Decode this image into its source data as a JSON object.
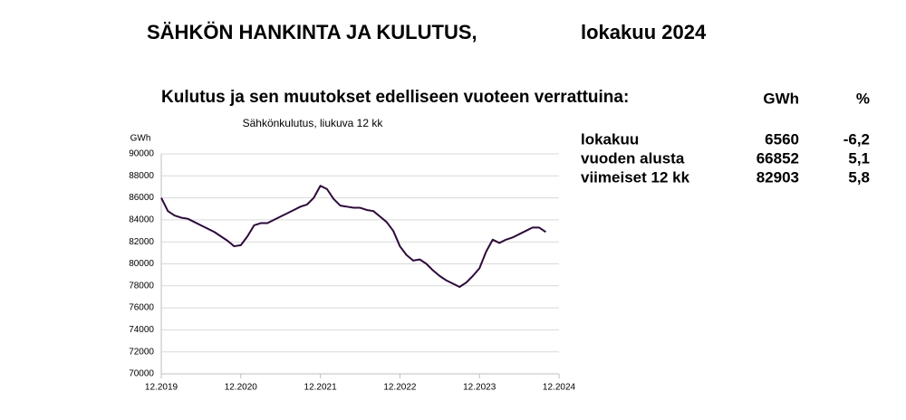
{
  "header": {
    "title": "SÄHKÖN HANKINTA JA KULUTUS,",
    "period": "lokakuu 2024"
  },
  "subheading": "Kulutus ja sen muutokset edelliseen vuoteen verrattuina:",
  "table": {
    "columns": [
      "GWh",
      "%"
    ],
    "rows": [
      [
        "lokakuu",
        "6560",
        "-6,2"
      ],
      [
        "vuoden alusta",
        "66852",
        "5,1"
      ],
      [
        "viimeiset 12 kk",
        "82903",
        "5,8"
      ]
    ]
  },
  "chart_data": {
    "type": "line",
    "title": "Sähkönkulutus, liukuva 12 kk",
    "y_label": "GWh",
    "categories": [
      "12.2019",
      null,
      null,
      null,
      null,
      null,
      null,
      null,
      null,
      null,
      null,
      null,
      "12.2020",
      null,
      null,
      null,
      null,
      null,
      null,
      null,
      null,
      null,
      null,
      null,
      "12.2021",
      null,
      null,
      null,
      null,
      null,
      null,
      null,
      null,
      null,
      null,
      null,
      "12.2022",
      null,
      null,
      null,
      null,
      null,
      null,
      null,
      null,
      null,
      null,
      null,
      "12.2023",
      null,
      null,
      null,
      null,
      null,
      null,
      null,
      null,
      null,
      null,
      null,
      "12.2024"
    ],
    "series": [
      {
        "name": "Sähkönkulutus",
        "color": "#2d0a3a",
        "values": [
          86000,
          84800,
          84400,
          84200,
          84100,
          83800,
          83500,
          83200,
          82900,
          82500,
          82100,
          81600,
          81700,
          82500,
          83500,
          83700,
          83700,
          84000,
          84300,
          84600,
          84900,
          85200,
          85400,
          86000,
          87100,
          86800,
          85900,
          85300,
          85200,
          85100,
          85100,
          84900,
          84800,
          84300,
          83800,
          83000,
          81600,
          80800,
          80300,
          80400,
          80000,
          79400,
          78900,
          78500,
          78200,
          77900,
          78300,
          78900,
          79600,
          81100,
          82200,
          81900,
          82200,
          82400,
          82700,
          83000,
          83300,
          83300,
          82900,
          null,
          null
        ]
      }
    ],
    "ylim": [
      70000,
      90000
    ],
    "yticks": [
      70000,
      72000,
      74000,
      76000,
      78000,
      80000,
      82000,
      84000,
      86000,
      88000,
      90000
    ],
    "grid": true
  }
}
